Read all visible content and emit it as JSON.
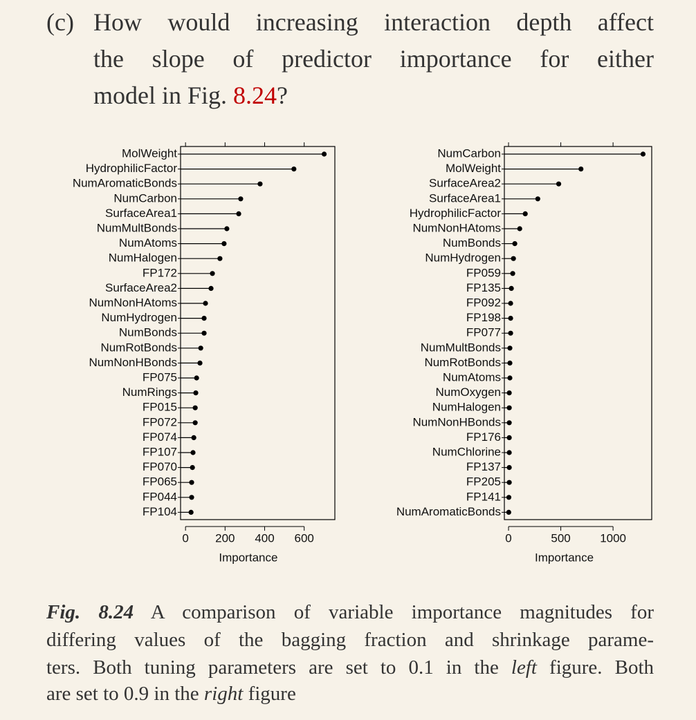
{
  "question": {
    "label": "(c)",
    "lines": [
      "How would increasing interaction depth affect",
      "the slope of predictor importance for either",
      "model in Fig."
    ],
    "ref": "8.24",
    "end": "?"
  },
  "chart_data": [
    {
      "type": "dot",
      "color": "#000000",
      "categories": [
        "MolWeight",
        "HydrophilicFactor",
        "NumAromaticBonds",
        "NumCarbon",
        "SurfaceArea1",
        "NumMultBonds",
        "NumAtoms",
        "NumHalogen",
        "FP172",
        "SurfaceArea2",
        "NumNonHAtoms",
        "NumHydrogen",
        "NumBonds",
        "NumRotBonds",
        "NumNonHBonds",
        "FP075",
        "NumRings",
        "FP015",
        "FP072",
        "FP074",
        "FP107",
        "FP070",
        "FP065",
        "FP044",
        "FP104"
      ],
      "values": [
        701,
        548,
        377,
        279,
        269,
        209,
        195,
        174,
        136,
        129,
        101,
        94,
        94,
        77,
        73,
        56,
        52,
        49,
        49,
        42,
        38,
        35,
        31,
        31,
        28
      ],
      "xlim": [
        -25,
        755
      ],
      "xticks": [
        0,
        200,
        400,
        600
      ],
      "xlabel": "Importance"
    },
    {
      "type": "dot",
      "color": "#000000",
      "categories": [
        "NumCarbon",
        "MolWeight",
        "SurfaceArea2",
        "SurfaceArea1",
        "HydrophilicFactor",
        "NumNonHAtoms",
        "NumBonds",
        "NumHydrogen",
        "FP059",
        "FP135",
        "FP092",
        "FP198",
        "FP077",
        "NumMultBonds",
        "NumRotBonds",
        "NumAtoms",
        "NumOxygen",
        "NumHalogen",
        "NumNonHBonds",
        "FP176",
        "NumChlorine",
        "FP137",
        "FP205",
        "FP141",
        "NumAromaticBonds"
      ],
      "values": [
        1287,
        693,
        480,
        280,
        160,
        107,
        60,
        47,
        40,
        27,
        20,
        20,
        20,
        13,
        13,
        13,
        7,
        7,
        7,
        7,
        7,
        7,
        7,
        3,
        2
      ],
      "xlim": [
        -40,
        1370
      ],
      "xticks": [
        0,
        500,
        1000
      ],
      "xlabel": "Importance"
    }
  ],
  "caption": {
    "label": "Fig. 8.24",
    "line1": "A comparison of variable importance magnitudes for",
    "line2": "differing values of the bagging fraction and shrinkage parame-",
    "line3": [
      "ters. Both tuning parameters are set to 0.1 in the ",
      "left",
      " figure. Both"
    ],
    "line4": [
      "are set to 0.9 in the ",
      "right",
      " figure"
    ]
  }
}
